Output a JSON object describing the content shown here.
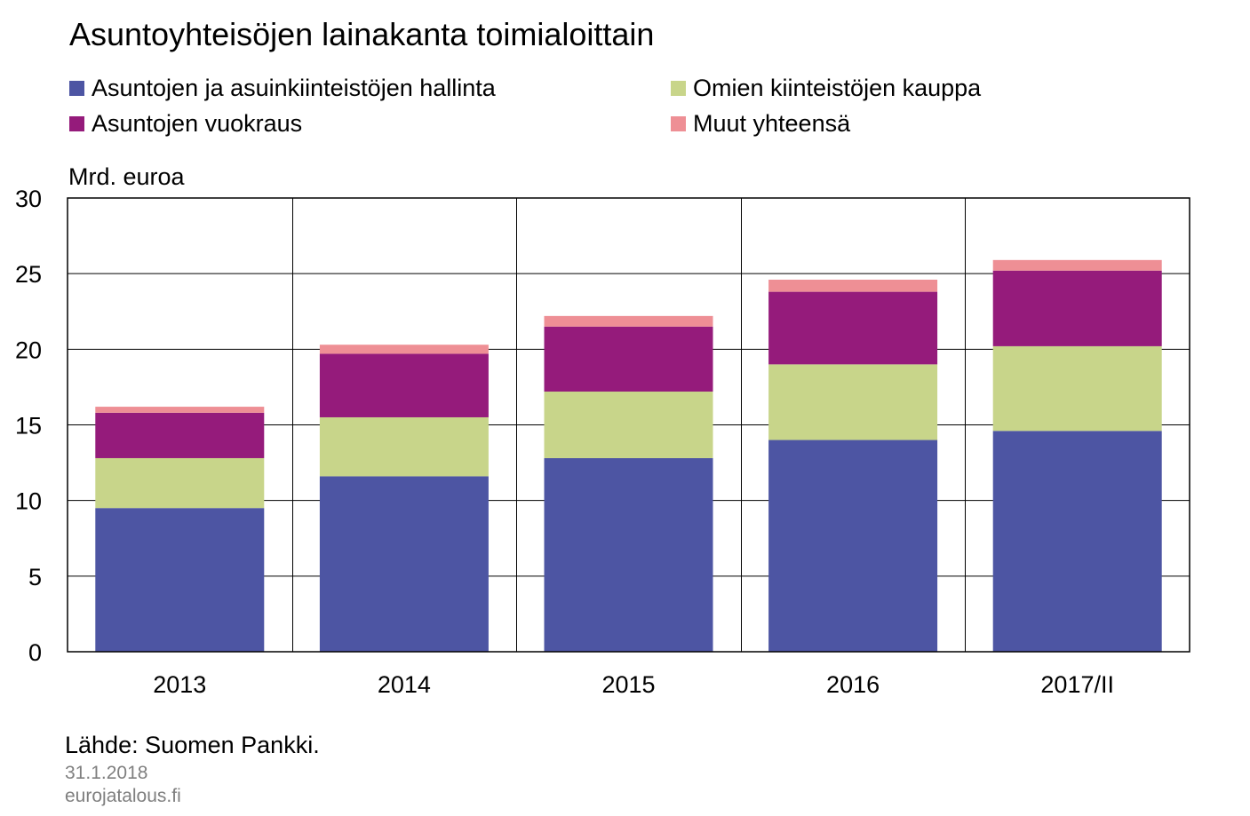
{
  "title": "Asuntoyhteisöjen lainakanta toimialoittain",
  "unit_label": "Mrd. euroa",
  "source": "Lähde: Suomen Pankki.",
  "date": "31.1.2018",
  "site": "eurojatalous.fi",
  "colors": {
    "hallinta": "#4d55a3",
    "kauppa": "#c8d58a",
    "vuokraus": "#951b7b",
    "muut": "#ee8f95"
  },
  "legend": [
    {
      "label": "Asuntojen ja asuinkiinteistöjen hallinta",
      "color": "#4d55a3"
    },
    {
      "label": "Omien kiinteistöjen kauppa",
      "color": "#c8d58a"
    },
    {
      "label": "Asuntojen vuokraus",
      "color": "#951b7b"
    },
    {
      "label": "Muut yhteensä",
      "color": "#ee8f95"
    }
  ],
  "chart_data": {
    "type": "bar",
    "stacked": true,
    "title": "Asuntoyhteisöjen lainakanta toimialoittain",
    "xlabel": "",
    "ylabel": "Mrd. euroa",
    "ylim": [
      0,
      30
    ],
    "yticks": [
      0,
      5,
      10,
      15,
      20,
      25,
      30
    ],
    "grid": true,
    "legend_position": "top",
    "categories": [
      "2013",
      "2014",
      "2015",
      "2016",
      "2017/II"
    ],
    "series": [
      {
        "name": "Asuntojen ja asuinkiinteistöjen hallinta",
        "color": "#4d55a3",
        "values": [
          9.5,
          11.6,
          12.8,
          14.0,
          14.6
        ]
      },
      {
        "name": "Omien kiinteistöjen kauppa",
        "color": "#c8d58a",
        "values": [
          3.3,
          3.9,
          4.4,
          5.0,
          5.6
        ]
      },
      {
        "name": "Asuntojen vuokraus",
        "color": "#951b7b",
        "values": [
          3.0,
          4.2,
          4.3,
          4.8,
          5.0
        ]
      },
      {
        "name": "Muut yhteensä",
        "color": "#ee8f95",
        "values": [
          0.4,
          0.6,
          0.7,
          0.8,
          0.7
        ]
      }
    ]
  }
}
